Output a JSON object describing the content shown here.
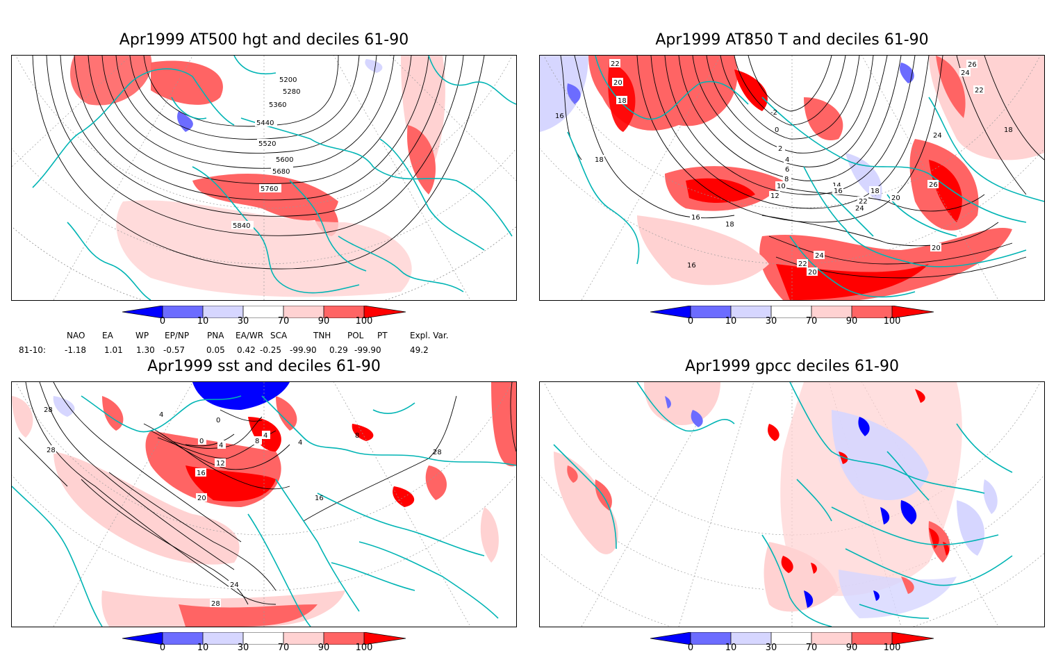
{
  "panels": [
    {
      "title": "Apr1999 AT500 hgt and deciles 61-90",
      "contour_labels": [
        "5200",
        "5280",
        "5360",
        "5440",
        "5520",
        "5600",
        "5680",
        "5760",
        "5840"
      ]
    },
    {
      "title": "Apr1999 AT850 T and deciles 61-90",
      "contour_labels": [
        "22",
        "20",
        "18",
        "16",
        "18",
        "24",
        "26",
        "22",
        "24",
        "18",
        "-2",
        "0",
        "2",
        "4",
        "6",
        "8",
        "10",
        "12",
        "14",
        "16",
        "18",
        "20",
        "22",
        "24",
        "26",
        "16",
        "18",
        "24",
        "20",
        "22",
        "20",
        "16"
      ]
    },
    {
      "title": "Apr1999 sst and deciles 61-90",
      "contour_labels": [
        "28",
        "28",
        "4",
        "0",
        "0",
        "4",
        "8",
        "12",
        "16",
        "20",
        "4",
        "4",
        "16",
        "28",
        "24",
        "28",
        "8"
      ]
    },
    {
      "title": "Apr1999 gpcc deciles 61-90",
      "contour_labels": []
    }
  ],
  "colorbar": {
    "ticks": [
      "0",
      "10",
      "30",
      "70",
      "90",
      "100"
    ],
    "colors": [
      "#0000ff",
      "#6c6cff",
      "#d6d6ff",
      "#ffffff",
      "#ffd2d2",
      "#ff6464",
      "#ff0000"
    ]
  },
  "indices": {
    "row_label": "81-10:",
    "names": [
      "NAO",
      "EA",
      "WP",
      "EP/NP",
      "PNA",
      "EA/WR",
      "SCA",
      "TNH",
      "POL",
      "PT",
      "Expl. Var."
    ],
    "values": [
      "-1.18",
      "1.01",
      "1.30",
      "-0.57",
      "0.05",
      "0.42",
      "-0.25",
      "-99.90",
      "0.29",
      "-99.90",
      "49.2"
    ]
  },
  "colors": {
    "coast": "#00b4b4",
    "contour": "#000000",
    "grid": "#999999"
  }
}
